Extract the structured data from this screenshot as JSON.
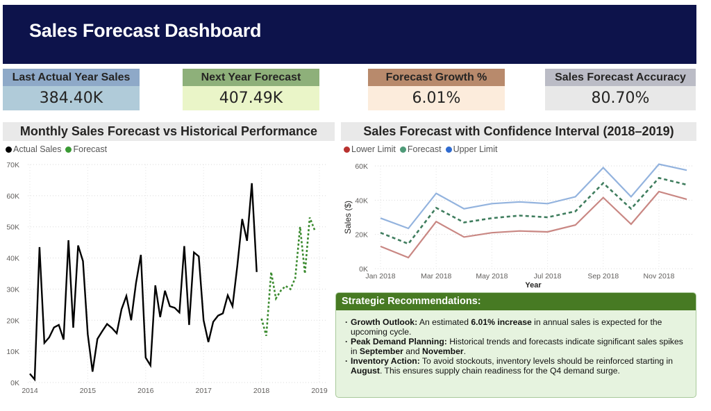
{
  "header": {
    "title": "Sales Forecast Dashboard"
  },
  "colors": {
    "header_bg": "#0d134b",
    "actual": "#000000",
    "forecast": "#3a8a2e",
    "lower": "#c98783",
    "ci_forecast": "#3f7d5e",
    "upper": "#93b3de",
    "reco_header": "#477a23"
  },
  "kpis": [
    {
      "label": "Last Actual Year Sales",
      "value": "384.40K"
    },
    {
      "label": "Next Year Forecast",
      "value": "407.49K"
    },
    {
      "label": "Forecast Growth %",
      "value": "6.01%"
    },
    {
      "label": "Sales Forecast Accuracy",
      "value": "80.70%"
    }
  ],
  "left_chart": {
    "title": "Monthly Sales Forecast vs Historical Performance",
    "legend": [
      {
        "label": "Actual Sales",
        "color": "#000000"
      },
      {
        "label": "Forecast",
        "color": "#3a9a34"
      }
    ]
  },
  "right_chart": {
    "title": "Sales Forecast with Confidence Interval (2018–2019)",
    "legend": [
      {
        "label": "Lower Limit",
        "color": "#b8312f"
      },
      {
        "label": "Forecast",
        "color": "#4e9a78"
      },
      {
        "label": "Upper Limit",
        "color": "#2f6bd0"
      }
    ]
  },
  "chart_data": [
    {
      "type": "line",
      "title": "Monthly Sales Forecast vs Historical Performance",
      "xlabel": "",
      "ylabel": "",
      "ylim": [
        0,
        70000
      ],
      "yticks": [
        "0K",
        "10K",
        "20K",
        "30K",
        "40K",
        "50K",
        "60K",
        "70K"
      ],
      "ytick_values": [
        0,
        10000,
        20000,
        30000,
        40000,
        50000,
        60000,
        70000
      ],
      "xlim": [
        2014,
        2019
      ],
      "xticks": [
        "2014",
        "2015",
        "2016",
        "2017",
        "2018",
        "2019"
      ],
      "grid": true,
      "legend_position": "top-left",
      "series": [
        {
          "name": "Actual Sales",
          "style": "solid",
          "x_start": "2014-01",
          "values": [
            2800,
            1000,
            43500,
            12700,
            14500,
            17700,
            18500,
            13800,
            45700,
            17600,
            44000,
            39000,
            15500,
            3500,
            14000,
            16500,
            18800,
            17500,
            15800,
            23500,
            27800,
            20000,
            32000,
            41000,
            8000,
            5500,
            31200,
            21000,
            29500,
            24500,
            24000,
            22500,
            43800,
            18500,
            41800,
            40500,
            20000,
            13000,
            19500,
            21500,
            22200,
            28000,
            24500,
            37500,
            52500,
            45500,
            64000,
            35500
          ]
        },
        {
          "name": "Forecast",
          "style": "dotted",
          "x_start": "2018-01",
          "values": [
            20500,
            15000,
            35500,
            27000,
            29500,
            31000,
            30000,
            33500,
            50000,
            35000,
            53000,
            49000
          ]
        }
      ]
    },
    {
      "type": "line",
      "title": "Sales Forecast with Confidence Interval (2018–2019)",
      "xlabel": "Year",
      "ylabel": "Sales ($)",
      "ylim": [
        0,
        60000
      ],
      "yticks": [
        "0K",
        "20K",
        "40K",
        "60K"
      ],
      "ytick_values": [
        0,
        20000,
        40000,
        60000
      ],
      "x": [
        "Jan 2018",
        "Feb 2018",
        "Mar 2018",
        "Apr 2018",
        "May 2018",
        "Jun 2018",
        "Jul 2018",
        "Aug 2018",
        "Sep 2018",
        "Oct 2018",
        "Nov 2018",
        "Dec 2018"
      ],
      "xticks": [
        "Jan 2018",
        "Mar 2018",
        "May 2018",
        "Jul 2018",
        "Sep 2018",
        "Nov 2018"
      ],
      "grid": true,
      "legend_position": "top-left",
      "series": [
        {
          "name": "Lower Limit",
          "style": "solid",
          "values": [
            13000,
            6500,
            27500,
            18500,
            21000,
            22000,
            21500,
            25500,
            41500,
            26000,
            45000,
            40500
          ]
        },
        {
          "name": "Forecast",
          "style": "dashed",
          "values": [
            21000,
            14500,
            35500,
            27000,
            29500,
            31000,
            30000,
            33500,
            50000,
            35000,
            53000,
            49000
          ]
        },
        {
          "name": "Upper Limit",
          "style": "solid",
          "values": [
            29500,
            23500,
            44000,
            35000,
            38000,
            39000,
            38000,
            42000,
            59000,
            42000,
            61000,
            57500
          ]
        }
      ]
    }
  ],
  "recommendations": {
    "title": "Strategic Recommendations:",
    "items": [
      {
        "parts": [
          {
            "b": true,
            "t": "Growth Outlook:"
          },
          {
            "b": false,
            "t": " An estimated "
          },
          {
            "b": true,
            "t": "6.01% increase"
          },
          {
            "b": false,
            "t": " in annual sales is expected for the upcoming cycle."
          }
        ]
      },
      {
        "parts": [
          {
            "b": true,
            "t": "Peak Demand Planning:"
          },
          {
            "b": false,
            "t": " Historical trends and forecasts indicate significant sales spikes in "
          },
          {
            "b": true,
            "t": "September"
          },
          {
            "b": false,
            "t": " and "
          },
          {
            "b": true,
            "t": "November"
          },
          {
            "b": false,
            "t": "."
          }
        ]
      },
      {
        "parts": [
          {
            "b": true,
            "t": "Inventory Action:"
          },
          {
            "b": false,
            "t": " To avoid stockouts, inventory levels should be reinforced starting in "
          },
          {
            "b": true,
            "t": "August"
          },
          {
            "b": false,
            "t": ". This ensures supply chain readiness for the Q4 demand surge."
          }
        ]
      }
    ]
  }
}
